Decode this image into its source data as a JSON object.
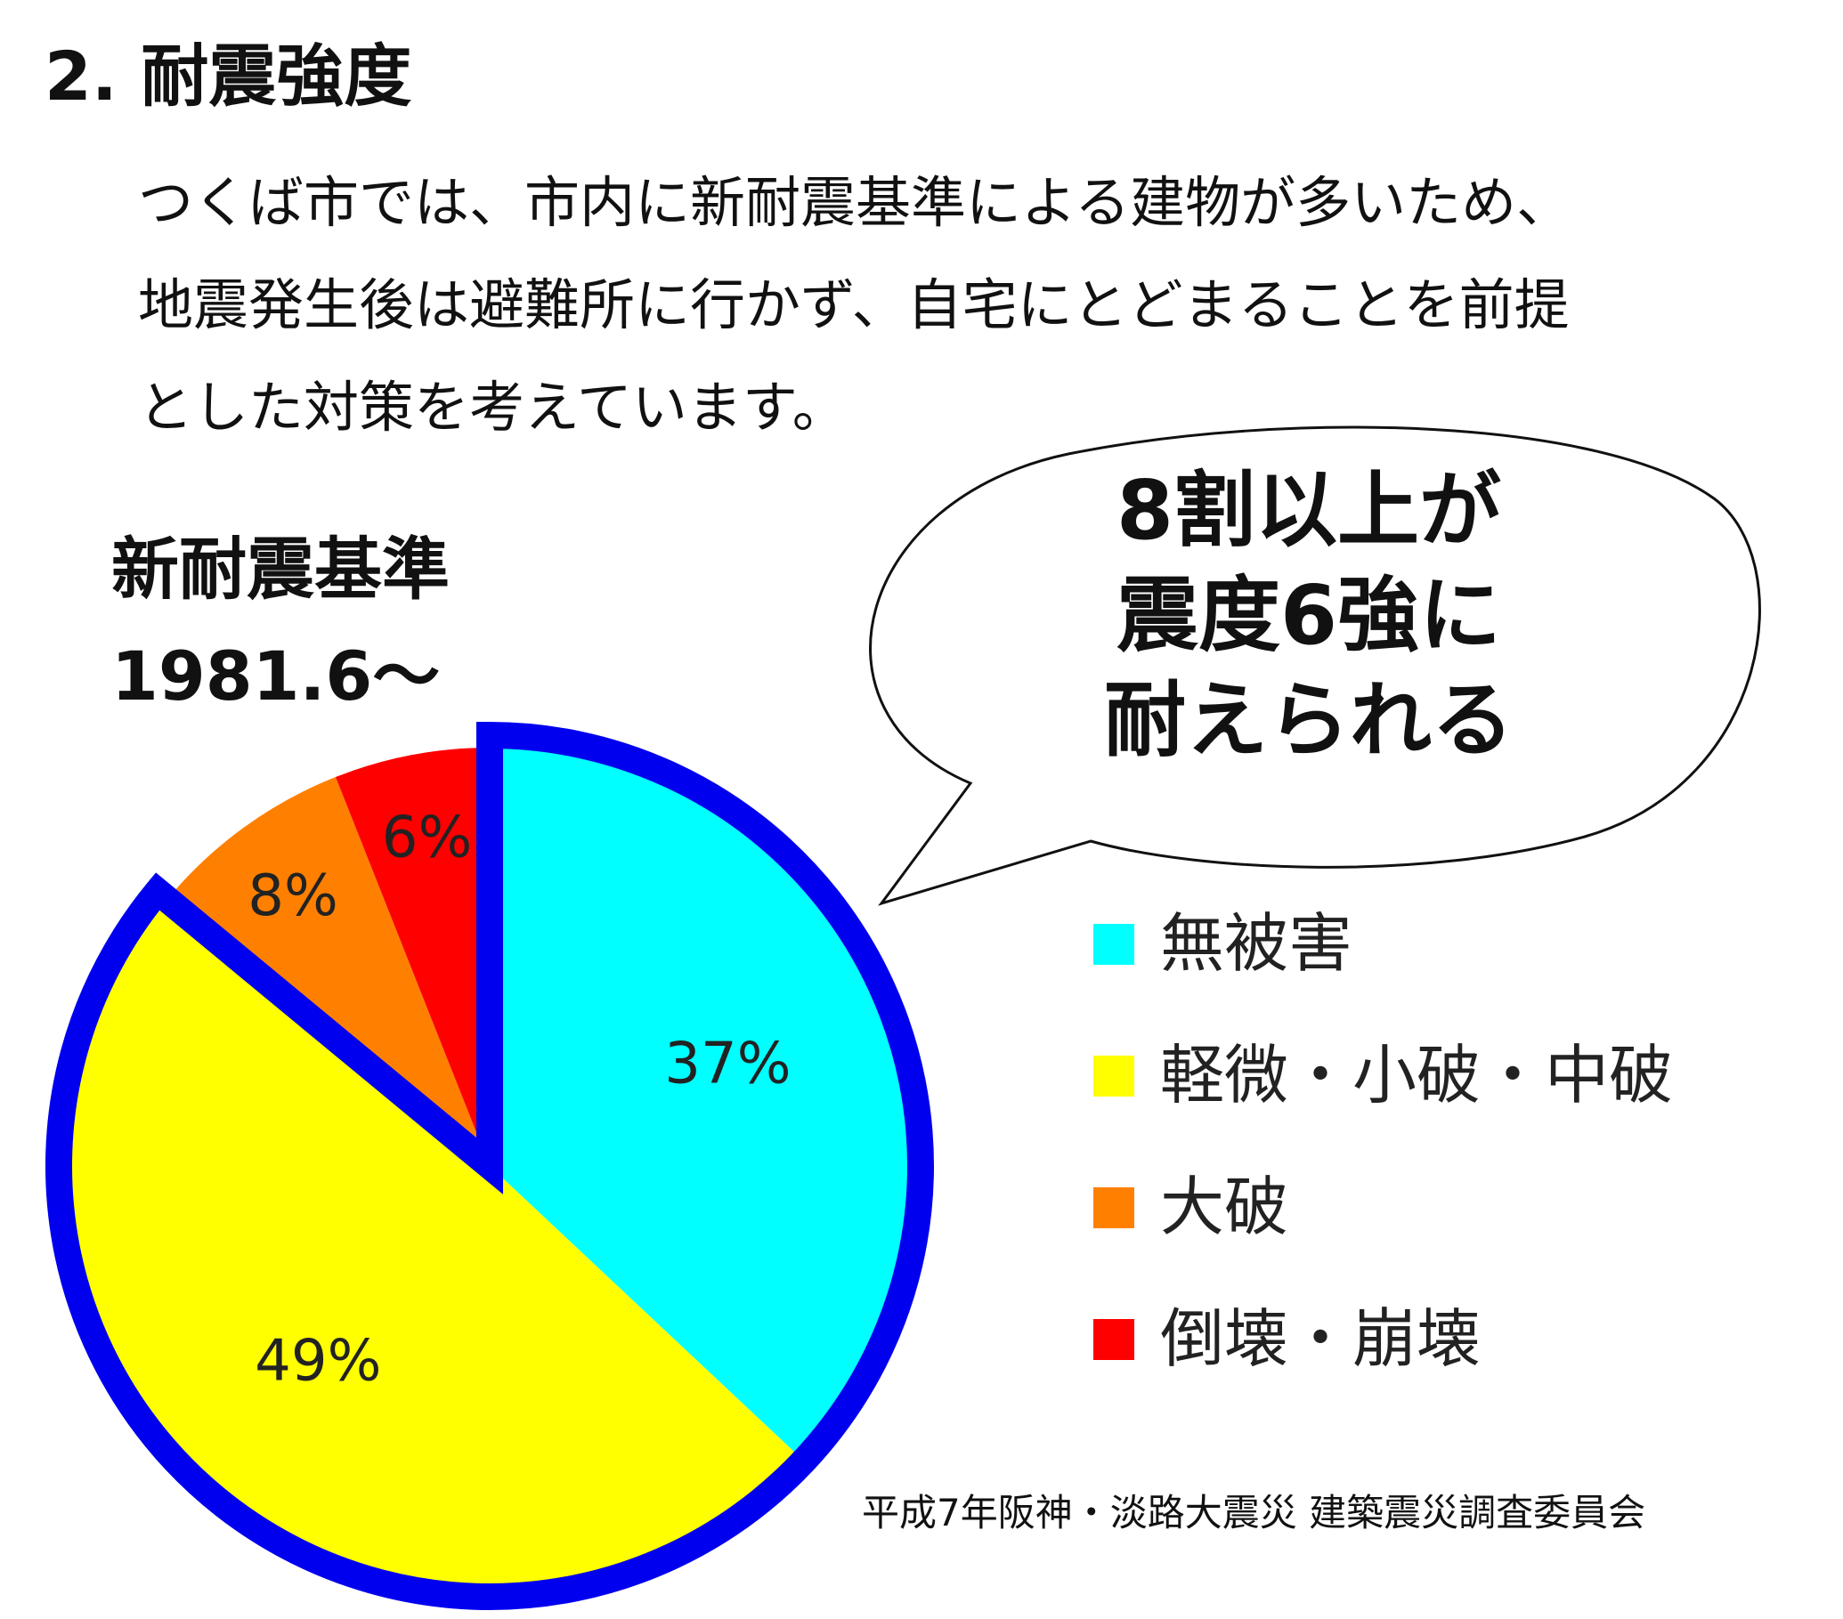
{
  "heading": "2. 耐震強度",
  "intro_lines": [
    "つくば市では、市内に新耐震基準による建物が多いため、",
    "地震発生後は避難所に行かず、自宅にとどまることを前提",
    "とした対策を考えています。"
  ],
  "chart_data": {
    "type": "pie",
    "title": "新耐震基準",
    "subtitle": "1981.6～",
    "categories": [
      "無被害",
      "軽微・小破・中破",
      "大破",
      "倒壊・崩壊"
    ],
    "values": [
      37,
      49,
      8,
      6
    ],
    "value_labels": [
      "37%",
      "49%",
      "8%",
      "6%"
    ],
    "colors": [
      "#00ffff",
      "#ffff00",
      "#ff8000",
      "#ff0000"
    ],
    "highlight_color": "#0000ee",
    "highlighted_categories": [
      "無被害",
      "軽微・小破・中破"
    ],
    "legend_position": "right",
    "callout_lines": [
      "8割以上が",
      "震度6強に",
      "耐えられる"
    ],
    "source": "平成7年阪神・淡路大震災 建築震災調査委員会"
  }
}
